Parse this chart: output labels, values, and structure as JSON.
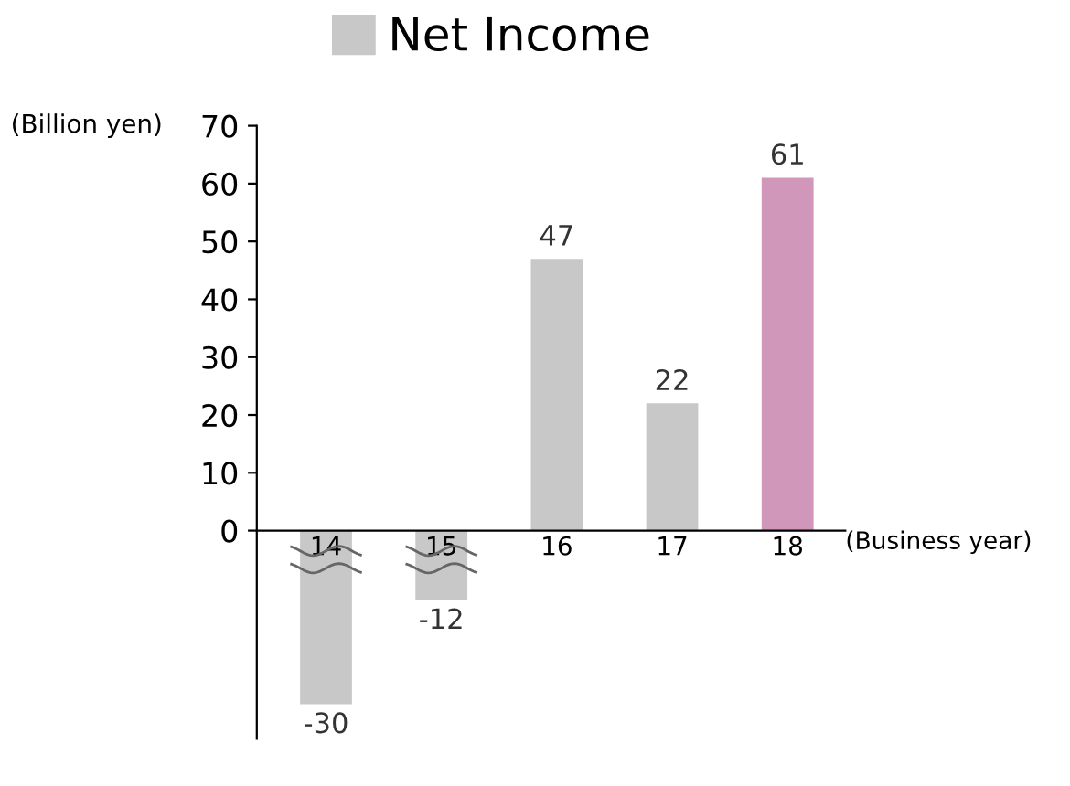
{
  "chart_data": {
    "type": "bar",
    "categories": [
      "14",
      "15",
      "16",
      "17",
      "18"
    ],
    "series": [
      {
        "name": "Net Income",
        "color": "#c8c8c8",
        "colors": [
          "#c8c8c8",
          "#c8c8c8",
          "#c8c8c8",
          "#c8c8c8",
          "#d197bb"
        ],
        "values": [
          -30,
          -12,
          47,
          22,
          61
        ]
      }
    ],
    "ylabel": "(Billion yen)",
    "xlabel": "(Business year)",
    "ylim": [
      -36,
      70
    ],
    "yticks": [
      0,
      10,
      20,
      30,
      40,
      50,
      60,
      70
    ],
    "data_labels": true,
    "legend": "top",
    "grid": false
  }
}
